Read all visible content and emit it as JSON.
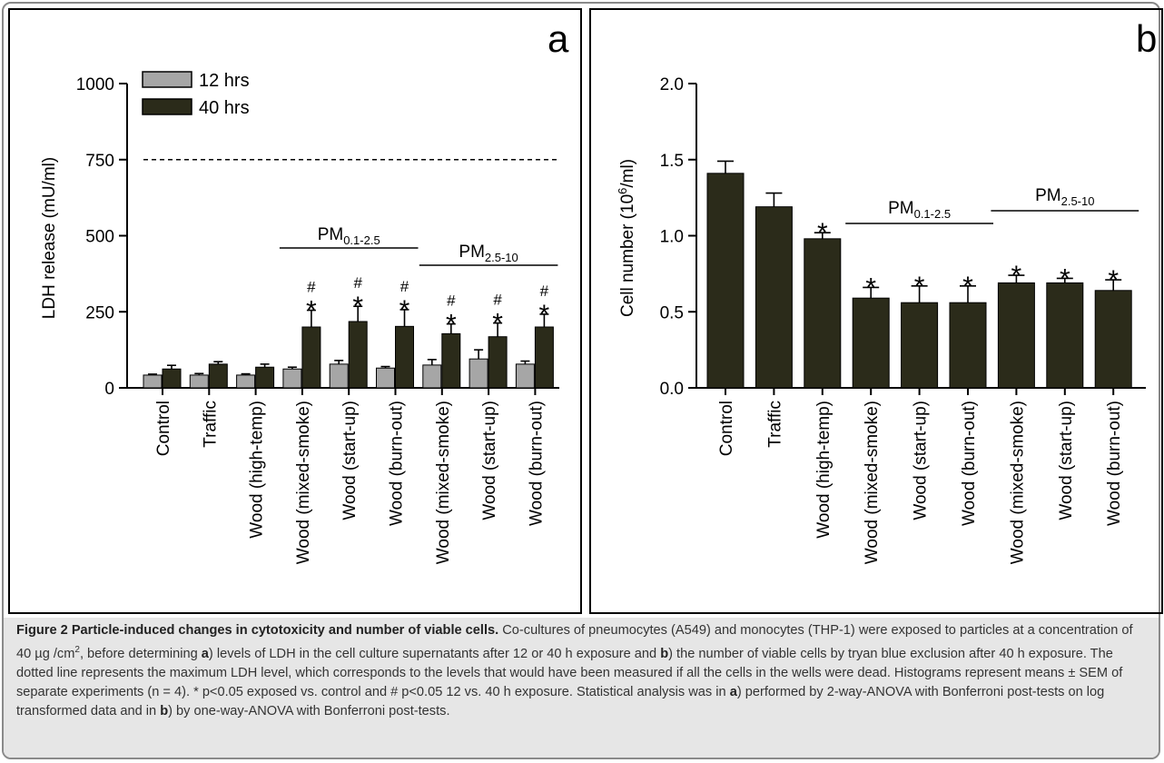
{
  "chart_data": [
    {
      "type": "bar",
      "panel": "a",
      "ylabel": "LDH release (mU/ml)",
      "ylim": [
        0,
        1000
      ],
      "yticks": [
        0,
        250,
        500,
        750,
        1000
      ],
      "categories": [
        "Control",
        "Traffic",
        "Wood (high-temp)",
        "Wood (mixed-smoke)",
        "Wood (start-up)",
        "Wood (burn-out)",
        "Wood (mixed-smoke)",
        "Wood (start-up)",
        "Wood (burn-out)"
      ],
      "series": [
        {
          "name": "12 hrs",
          "color": "#a6a6a6",
          "values": [
            42,
            42,
            42,
            62,
            78,
            65,
            75,
            95,
            78
          ],
          "errors": [
            3,
            5,
            4,
            6,
            12,
            5,
            18,
            30,
            10
          ]
        },
        {
          "name": "40 hrs",
          "color": "#2b2b1a",
          "values": [
            62,
            78,
            68,
            200,
            218,
            202,
            178,
            168,
            200
          ],
          "errors": [
            12,
            8,
            10,
            55,
            50,
            55,
            32,
            45,
            42
          ]
        }
      ],
      "reference_line": {
        "value": 750,
        "style": "dashed"
      },
      "legend": "top-left",
      "groups": [
        {
          "label_main": "PM",
          "label_sub": "0.1-2.5",
          "from": 3,
          "to": 5
        },
        {
          "label_main": "PM",
          "label_sub": "2.5-10",
          "from": 6,
          "to": 8
        }
      ],
      "star_marker": "*",
      "hash_marker": "#",
      "stars": [
        3,
        4,
        5,
        6,
        7,
        8
      ],
      "hashes": [
        3,
        4,
        5,
        6,
        7,
        8
      ]
    },
    {
      "type": "bar",
      "panel": "b",
      "ylabel_main": "Cell number  (10",
      "ylabel_sup": "6",
      "ylabel_end": "/ml)",
      "ylim": [
        0,
        2.0
      ],
      "yticks": [
        "0.0",
        "0.5",
        "1.0",
        "1.5",
        "2.0"
      ],
      "categories": [
        "Control",
        "Traffic",
        "Wood (high-temp)",
        "Wood (mixed-smoke)",
        "Wood (start-up)",
        "Wood (burn-out)",
        "Wood (mixed-smoke)",
        "Wood (start-up)",
        "Wood (burn-out)"
      ],
      "series": [
        {
          "color": "#2b2b1a",
          "values": [
            1.41,
            1.19,
            0.98,
            0.59,
            0.56,
            0.56,
            0.69,
            0.69,
            0.64
          ],
          "errors": [
            0.08,
            0.09,
            0.04,
            0.07,
            0.11,
            0.11,
            0.05,
            0.03,
            0.07
          ]
        }
      ],
      "groups": [
        {
          "label_main": "PM",
          "label_sub": "0.1-2.5",
          "from": 3,
          "to": 5
        },
        {
          "label_main": "PM",
          "label_sub": "2.5-10",
          "from": 6,
          "to": 8
        }
      ],
      "star_marker": "*",
      "stars": [
        2,
        3,
        4,
        5,
        6,
        7,
        8
      ]
    }
  ],
  "caption": {
    "title": "Figure 2 Particle-induced changes in cytotoxicity and number of viable cells.",
    "p1": " Co-cultures of pneumocytes (A549) and monocytes (THP-1) were exposed to particles at a concentration of 40 µg /cm",
    "sup": "2",
    "p2": ", before determining ",
    "a1": "a",
    "p3": ") levels of LDH in the cell culture supernatants after 12 or 40 h exposure and ",
    "b1": "b",
    "p4": ") the number of viable cells by tryan blue exclusion after 40 h exposure. The dotted line represents the maximum LDH level, which corresponds to the levels that would have been measured if all the cells in the wells were dead. Histograms represent means ± SEM of separate experiments (n = 4). * p<0.05 exposed vs. control and # p<0.05 12 vs. 40 h exposure. Statistical analysis was in ",
    "a2": "a",
    "p5": ") performed by 2-way-ANOVA with Bonferroni post-tests on log transformed data and in ",
    "b2": "b",
    "p6": ") by one-way-ANOVA with Bonferroni post-tests."
  }
}
